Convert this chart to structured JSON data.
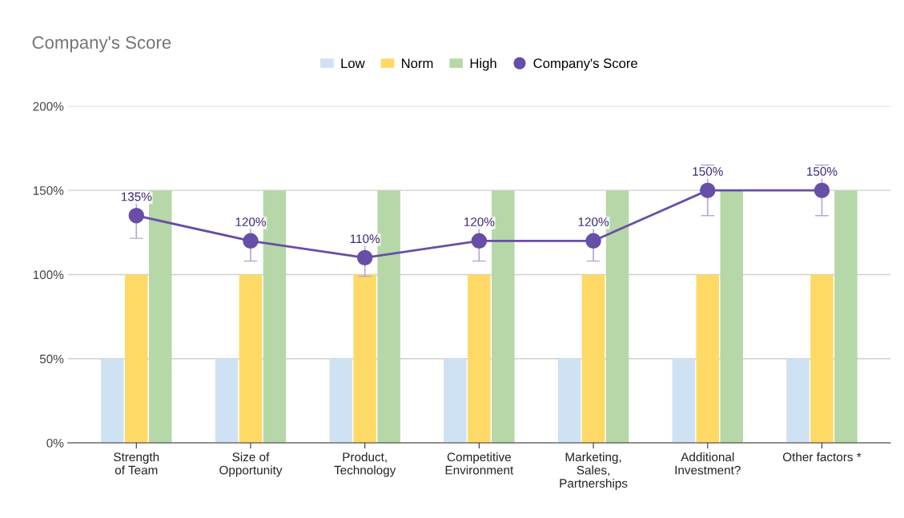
{
  "chart_data": {
    "type": "bar",
    "title": "Company's Score",
    "categories": [
      "Strength\nof Team",
      "Size of\nOpportunity",
      "Product,\nTechnology",
      "Competitive\nEnvironment",
      "Marketing,\nSales,\nPartnerships",
      "Additional\nInvestment?",
      "Other factors *"
    ],
    "series": [
      {
        "name": "Low",
        "color": "#cfe2f3",
        "values": [
          50,
          50,
          50,
          50,
          50,
          50,
          50
        ]
      },
      {
        "name": "Norm",
        "color": "#ffd966",
        "values": [
          100,
          100,
          100,
          100,
          100,
          100,
          100
        ]
      },
      {
        "name": "High",
        "color": "#b6d7a8",
        "values": [
          150,
          150,
          150,
          150,
          150,
          150,
          150
        ]
      },
      {
        "name": "Company's Score",
        "type": "line",
        "color": "#674ea7",
        "marker": "circle",
        "values": [
          135,
          120,
          110,
          120,
          120,
          150,
          150
        ],
        "errors": [
          13.5,
          12,
          11,
          12,
          12,
          15,
          15
        ],
        "value_labels": [
          "135%",
          "120%",
          "110%",
          "120%",
          "120%",
          "150%",
          "150%"
        ]
      }
    ],
    "ylim": [
      0,
      200
    ],
    "yticks": [
      {
        "value": 0,
        "label": "0%"
      },
      {
        "value": 50,
        "label": "50%"
      },
      {
        "value": 100,
        "label": "100%"
      },
      {
        "value": 150,
        "label": "150%"
      },
      {
        "value": 200,
        "label": "200%"
      }
    ],
    "grid": "y",
    "legend": "top"
  }
}
